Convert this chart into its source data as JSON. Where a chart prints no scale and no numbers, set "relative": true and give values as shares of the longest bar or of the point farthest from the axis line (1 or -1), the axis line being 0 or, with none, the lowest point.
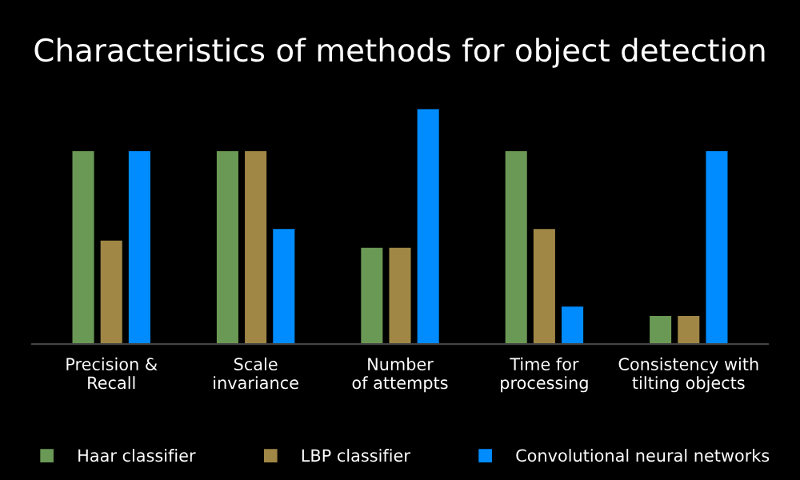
{
  "chart_data": {
    "type": "bar",
    "title": "Characteristics of methods for object detection",
    "categories": [
      "Precision &\nRecall",
      "Scale\ninvariance",
      "Number\nof attempts",
      "Time for\nprocessing",
      "Consistency with\ntilting objects"
    ],
    "relative": true,
    "legend": "bottom",
    "grid": false,
    "series": [
      {
        "name": "Haar classifier",
        "color": "#6a9955",
        "values": [
          0.82,
          0.82,
          0.41,
          0.82,
          0.12
        ]
      },
      {
        "name": "LBP classifier",
        "color": "#a08746",
        "values": [
          0.44,
          0.82,
          0.41,
          0.49,
          0.12
        ]
      },
      {
        "name": "Convolutional neural networks",
        "color": "#008cff",
        "values": [
          0.82,
          0.49,
          1,
          0.16,
          0.82
        ]
      }
    ]
  }
}
